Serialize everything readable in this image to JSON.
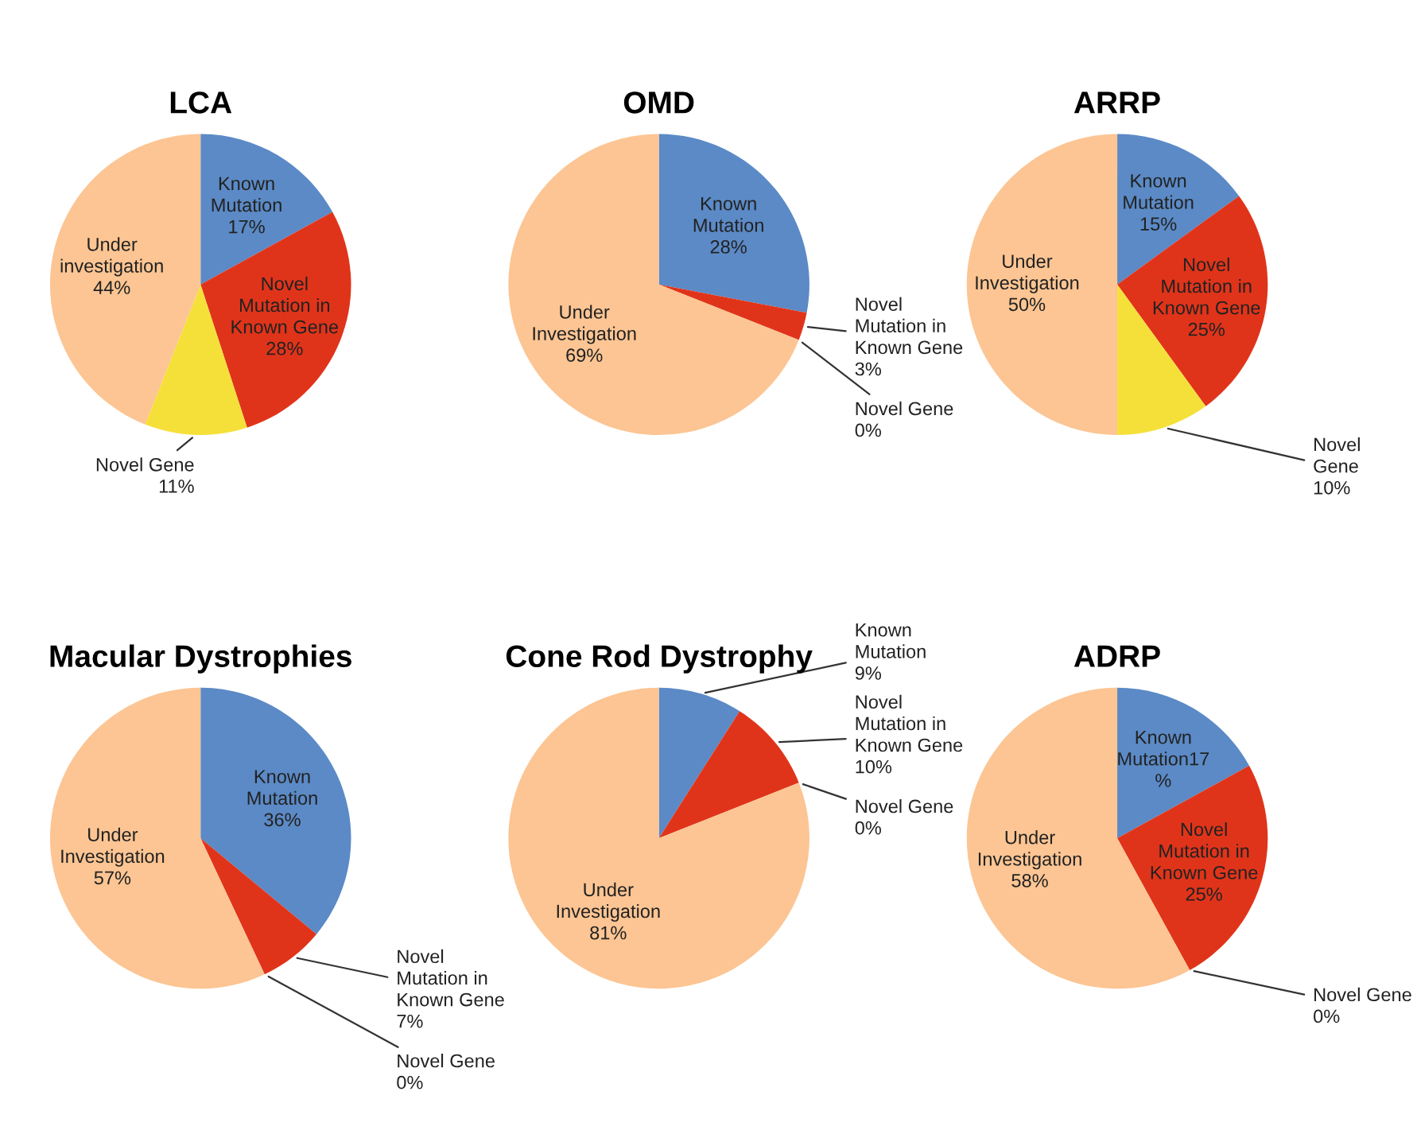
{
  "chart_data": [
    {
      "type": "pie",
      "title": "LCA",
      "categories": [
        "Known\nMutation",
        "Novel\nMutation in\nKnown Gene",
        "Novel Gene",
        "Under\ninvestigation"
      ],
      "values": [
        17,
        28,
        11,
        44
      ],
      "value_labels": [
        "\n17%",
        "\n28%",
        "\n11%",
        "\n44%"
      ],
      "colors": [
        "#5b8ac6",
        "#e0341a",
        "#f5e03a",
        "#fcc593"
      ]
    },
    {
      "type": "pie",
      "title": "OMD",
      "categories": [
        "Known\nMutation",
        "Novel\nMutation in\nKnown Gene",
        "Novel Gene",
        "Under\nInvestigation"
      ],
      "values": [
        28,
        3,
        0,
        69
      ],
      "value_labels": [
        "\n28%",
        "\n3%",
        "\n0%",
        "\n69%"
      ],
      "colors": [
        "#5b8ac6",
        "#e0341a",
        "#f5e03a",
        "#fcc593"
      ]
    },
    {
      "type": "pie",
      "title": "ARRP",
      "categories": [
        "Known\nMutation",
        "Novel\nMutation in\nKnown Gene",
        "Novel\nGene",
        "Under\nInvestigation"
      ],
      "values": [
        15,
        25,
        10,
        50
      ],
      "value_labels": [
        "\n15%",
        "\n25%",
        "\n10%",
        "\n50%"
      ],
      "colors": [
        "#5b8ac6",
        "#e0341a",
        "#f5e03a",
        "#fcc593"
      ]
    },
    {
      "type": "pie",
      "title": "Macular Dystrophies",
      "categories": [
        "Known\nMutation",
        "Novel\nMutation in\nKnown Gene",
        "Novel Gene",
        "Under\nInvestigation"
      ],
      "values": [
        36,
        7,
        0,
        57
      ],
      "value_labels": [
        "\n36%",
        "\n7%",
        "\n0%",
        "\n57%"
      ],
      "colors": [
        "#5b8ac6",
        "#e0341a",
        "#f5e03a",
        "#fcc593"
      ]
    },
    {
      "type": "pie",
      "title": "Cone Rod Dystrophy",
      "categories": [
        "Known\nMutation",
        "Novel\nMutation in\nKnown Gene",
        "Novel Gene",
        "Under\nInvestigation"
      ],
      "values": [
        9,
        10,
        0,
        81
      ],
      "value_labels": [
        "\n9%",
        "\n10%",
        "\n0%",
        "\n81%"
      ],
      "colors": [
        "#5b8ac6",
        "#e0341a",
        "#f5e03a",
        "#fcc593"
      ]
    },
    {
      "type": "pie",
      "title": "ADRP",
      "categories": [
        "Known\nMutation",
        "Novel\nMutation in\nKnown Gene",
        "Novel Gene",
        "Under\nInvestigation"
      ],
      "values": [
        17,
        25,
        0,
        58
      ],
      "value_labels": [
        "17\n%",
        "\n25%",
        "\n0%",
        "\n58%"
      ],
      "colors": [
        "#5b8ac6",
        "#e0341a",
        "#f5e03a",
        "#fcc593"
      ]
    }
  ]
}
